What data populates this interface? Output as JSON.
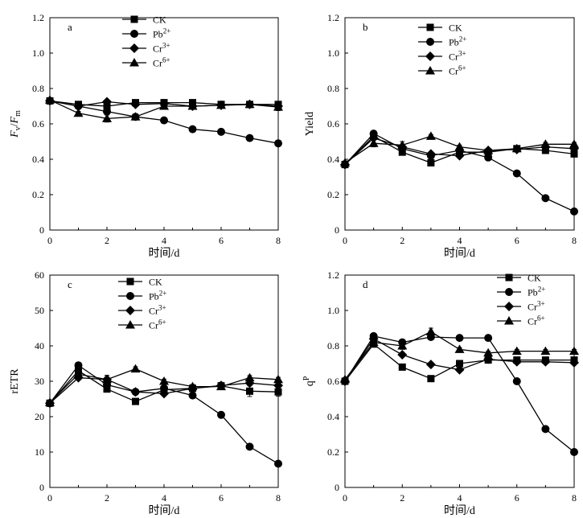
{
  "chart_data": [
    {
      "type": "line",
      "panel_label": "a",
      "ylabel_parts": [
        "F",
        "v",
        "/",
        "F",
        "m"
      ],
      "xlabel": "时间/d",
      "x": [
        0,
        1,
        2,
        3,
        4,
        5,
        6,
        7,
        8
      ],
      "xlim": [
        0,
        8
      ],
      "ylim": [
        0,
        1.2
      ],
      "xticks": [
        "0",
        "2",
        "4",
        "6",
        "8"
      ],
      "yticks": [
        "0",
        "0.2",
        "0.4",
        "0.6",
        "0.8",
        "1.0",
        "1.2"
      ],
      "legend_position": "top-center",
      "series": [
        {
          "name": "CK",
          "sup": "",
          "marker": "square",
          "values": [
            0.73,
            0.71,
            0.7,
            0.72,
            0.72,
            0.72,
            0.71,
            0.71,
            0.71
          ],
          "errors": [
            0.01,
            0.01,
            0.01,
            0.01,
            0.01,
            0.01,
            0.01,
            0.01,
            0.01
          ]
        },
        {
          "name": "Pb",
          "sup": "2+",
          "marker": "circle",
          "values": [
            0.73,
            0.7,
            0.67,
            0.64,
            0.62,
            0.57,
            0.555,
            0.52,
            0.49
          ],
          "errors": [
            0.01,
            0.01,
            0.01,
            0.01,
            0.01,
            0.01,
            0.01,
            0.01,
            0.01
          ]
        },
        {
          "name": "Cr",
          "sup": "3+",
          "marker": "diamond",
          "values": [
            0.73,
            0.7,
            0.725,
            0.71,
            0.715,
            0.7,
            0.705,
            0.71,
            0.7
          ],
          "errors": [
            0.01,
            0.01,
            0.01,
            0.01,
            0.01,
            0.01,
            0.01,
            0.01,
            0.01
          ]
        },
        {
          "name": "Cr",
          "sup": "6+",
          "marker": "triangle",
          "values": [
            0.735,
            0.66,
            0.63,
            0.64,
            0.7,
            0.7,
            0.705,
            0.71,
            0.695
          ],
          "errors": [
            0.01,
            0.01,
            0.02,
            0.01,
            0.01,
            0.01,
            0.01,
            0.01,
            0.02
          ]
        }
      ]
    },
    {
      "type": "line",
      "panel_label": "b",
      "ylabel_parts": [
        "Yield"
      ],
      "xlabel": "时间/d",
      "x": [
        0,
        1,
        2,
        3,
        4,
        5,
        6,
        7,
        8
      ],
      "xlim": [
        0,
        8
      ],
      "ylim": [
        0,
        1.2
      ],
      "xticks": [
        "0",
        "2",
        "4",
        "6",
        "8"
      ],
      "yticks": [
        "0",
        "0.2",
        "0.4",
        "0.6",
        "0.8",
        "1.0",
        "1.2"
      ],
      "legend_position": "top-right",
      "series": [
        {
          "name": "CK",
          "sup": "",
          "marker": "square",
          "values": [
            0.37,
            0.53,
            0.44,
            0.38,
            0.44,
            0.44,
            0.46,
            0.45,
            0.43
          ],
          "errors": [
            0.01,
            0.01,
            0.01,
            0.01,
            0.01,
            0.01,
            0.01,
            0.01,
            0.01
          ]
        },
        {
          "name": "Pb",
          "sup": "2+",
          "marker": "circle",
          "values": [
            0.37,
            0.545,
            0.46,
            0.42,
            0.45,
            0.41,
            0.32,
            0.18,
            0.105
          ],
          "errors": [
            0.01,
            0.01,
            0.01,
            0.01,
            0.01,
            0.01,
            0.01,
            0.01,
            0.01
          ]
        },
        {
          "name": "Cr",
          "sup": "3+",
          "marker": "diamond",
          "values": [
            0.37,
            0.52,
            0.47,
            0.43,
            0.42,
            0.45,
            0.455,
            0.47,
            0.46
          ],
          "errors": [
            0.01,
            0.01,
            0.01,
            0.01,
            0.01,
            0.01,
            0.01,
            0.01,
            0.01
          ]
        },
        {
          "name": "Cr",
          "sup": "6+",
          "marker": "triangle",
          "values": [
            0.38,
            0.49,
            0.48,
            0.53,
            0.47,
            0.45,
            0.46,
            0.485,
            0.485
          ],
          "errors": [
            0.01,
            0.02,
            0.02,
            0.01,
            0.01,
            0.01,
            0.01,
            0.01,
            0.01
          ]
        }
      ]
    },
    {
      "type": "line",
      "panel_label": "c",
      "ylabel_parts": [
        "rETR"
      ],
      "xlabel": "时间/d",
      "x": [
        0,
        1,
        2,
        3,
        4,
        5,
        6,
        7,
        8
      ],
      "xlim": [
        0,
        8
      ],
      "ylim": [
        0,
        60
      ],
      "xticks": [
        "0",
        "2",
        "4",
        "6",
        "8"
      ],
      "yticks": [
        "0",
        "10",
        "20",
        "30",
        "40",
        "50",
        "60"
      ],
      "legend_position": "top-center",
      "series": [
        {
          "name": "CK",
          "sup": "",
          "marker": "square",
          "values": [
            23.8,
            33.0,
            27.8,
            24.3,
            27.6,
            28.0,
            28.7,
            27.2,
            27.0
          ],
          "errors": [
            0.6,
            0.6,
            0.6,
            0.6,
            0.6,
            0.6,
            1.0,
            1.5,
            1.2
          ]
        },
        {
          "name": "Pb",
          "sup": "2+",
          "marker": "circle",
          "values": [
            23.8,
            34.5,
            29.0,
            27.0,
            28.0,
            26.0,
            20.5,
            11.5,
            6.7
          ],
          "errors": [
            0.6,
            0.6,
            0.6,
            0.6,
            0.6,
            0.6,
            0.6,
            0.6,
            0.6
          ]
        },
        {
          "name": "Cr",
          "sup": "3+",
          "marker": "diamond",
          "values": [
            23.8,
            31.0,
            30.5,
            27.0,
            26.5,
            28.0,
            28.8,
            29.5,
            28.8
          ],
          "errors": [
            0.6,
            0.6,
            0.8,
            0.6,
            0.6,
            0.6,
            0.6,
            0.6,
            0.6
          ]
        },
        {
          "name": "Cr",
          "sup": "6+",
          "marker": "triangle",
          "values": [
            24.0,
            32.0,
            30.5,
            33.5,
            30.0,
            28.5,
            28.5,
            31.0,
            30.5
          ],
          "errors": [
            0.6,
            0.8,
            1.2,
            0.6,
            0.6,
            0.6,
            0.6,
            0.6,
            0.6
          ]
        }
      ]
    },
    {
      "type": "line",
      "panel_label": "d",
      "ylabel_parts": [
        "q",
        "P"
      ],
      "xlabel": "时间/d",
      "x": [
        0,
        1,
        2,
        3,
        4,
        5,
        6,
        7,
        8
      ],
      "xlim": [
        0,
        8
      ],
      "ylim": [
        0,
        1.2
      ],
      "xticks": [
        "0",
        "2",
        "4",
        "6",
        "8"
      ],
      "yticks": [
        "0",
        "0.2",
        "0.4",
        "0.6",
        "0.8",
        "1.0",
        "1.2"
      ],
      "legend_position": "top-center",
      "series": [
        {
          "name": "CK",
          "sup": "",
          "marker": "square",
          "values": [
            0.6,
            0.81,
            0.68,
            0.615,
            0.7,
            0.72,
            0.72,
            0.72,
            0.72
          ],
          "errors": [
            0.01,
            0.01,
            0.01,
            0.01,
            0.01,
            0.01,
            0.01,
            0.01,
            0.01
          ]
        },
        {
          "name": "Pb",
          "sup": "2+",
          "marker": "circle",
          "values": [
            0.6,
            0.855,
            0.82,
            0.85,
            0.845,
            0.845,
            0.6,
            0.33,
            0.2
          ],
          "errors": [
            0.01,
            0.01,
            0.01,
            0.01,
            0.01,
            0.01,
            0.01,
            0.01,
            0.01
          ]
        },
        {
          "name": "Cr",
          "sup": "3+",
          "marker": "diamond",
          "values": [
            0.6,
            0.84,
            0.75,
            0.695,
            0.665,
            0.725,
            0.71,
            0.71,
            0.705
          ],
          "errors": [
            0.01,
            0.01,
            0.01,
            0.01,
            0.01,
            0.01,
            0.01,
            0.01,
            0.01
          ]
        },
        {
          "name": "Cr",
          "sup": "6+",
          "marker": "triangle",
          "values": [
            0.61,
            0.82,
            0.8,
            0.88,
            0.78,
            0.76,
            0.77,
            0.77,
            0.77
          ],
          "errors": [
            0.01,
            0.01,
            0.02,
            0.02,
            0.01,
            0.01,
            0.01,
            0.01,
            0.01
          ]
        }
      ]
    }
  ]
}
